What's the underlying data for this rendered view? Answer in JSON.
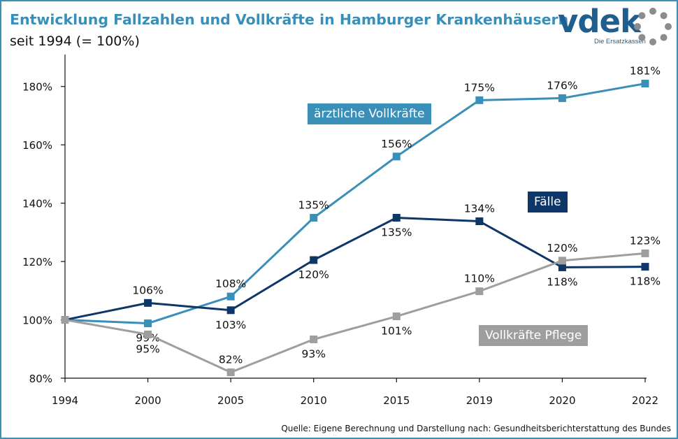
{
  "header": {
    "title": "Entwicklung Fallzahlen und Vollkräfte in Hamburger Krankenhäusern",
    "subtitle": "seit 1994 (= 100%)"
  },
  "logo": {
    "text": "vdek",
    "subtext": "Die Ersatzkassen"
  },
  "source": "Quelle: Eigene Berechnung und Darstellung nach: Gesundheitsberichterstattung des Bundes",
  "colors": {
    "accent": "#3a8fb8",
    "aerzte": "#3a8fb8",
    "faelle": "#0f3668",
    "pflege": "#9e9e9e"
  },
  "chart_data": {
    "type": "line",
    "title": "Entwicklung Fallzahlen und Vollkräfte in Hamburger Krankenhäusern",
    "subtitle": "seit 1994 (= 100%)",
    "xlabel": "",
    "ylabel": "",
    "categories": [
      "1994",
      "2000",
      "2005",
      "2010",
      "2015",
      "2019",
      "2020",
      "2022"
    ],
    "ylim": [
      80,
      190
    ],
    "yticks": [
      80,
      100,
      120,
      140,
      160,
      180
    ],
    "ytick_labels": [
      "80%",
      "100%",
      "120%",
      "140%",
      "160%",
      "180%"
    ],
    "series": [
      {
        "key": "aerzte",
        "name": "ärztliche Vollkräfte",
        "color": "#3a8fb8",
        "values": [
          100,
          98.8,
          108,
          135,
          156,
          175.3,
          176,
          181
        ],
        "labels": [
          "",
          "99%",
          "108%",
          "135%",
          "156%",
          "175%",
          "176%",
          "181%"
        ],
        "label_pos": [
          "",
          "below",
          "above",
          "above",
          "above",
          "above",
          "above",
          "above"
        ]
      },
      {
        "key": "faelle",
        "name": "Fälle",
        "color": "#0f3668",
        "values": [
          100,
          105.8,
          103.3,
          120.5,
          135,
          133.8,
          118,
          118.2
        ],
        "labels": [
          "",
          "106%",
          "103%",
          "120%",
          "135%",
          "134%",
          "118%",
          "118%"
        ],
        "label_pos": [
          "",
          "above",
          "below",
          "below",
          "below",
          "above",
          "below",
          "below"
        ]
      },
      {
        "key": "pflege",
        "name": "Vollkräfte Pflege",
        "color": "#9e9e9e",
        "values": [
          100,
          95,
          82,
          93.3,
          101.2,
          109.8,
          120.3,
          122.8
        ],
        "labels": [
          "",
          "95%",
          "82%",
          "93%",
          "101%",
          "110%",
          "120%",
          "123%"
        ],
        "label_pos": [
          "",
          "below",
          "above",
          "below",
          "below",
          "above",
          "above",
          "above"
        ]
      }
    ],
    "legend": [
      {
        "key": "aerzte",
        "text": "ärztliche Vollkräfte"
      },
      {
        "key": "faelle",
        "text": "Fälle"
      },
      {
        "key": "pflege",
        "text": "Vollkräfte Pflege"
      }
    ],
    "grid": false
  }
}
